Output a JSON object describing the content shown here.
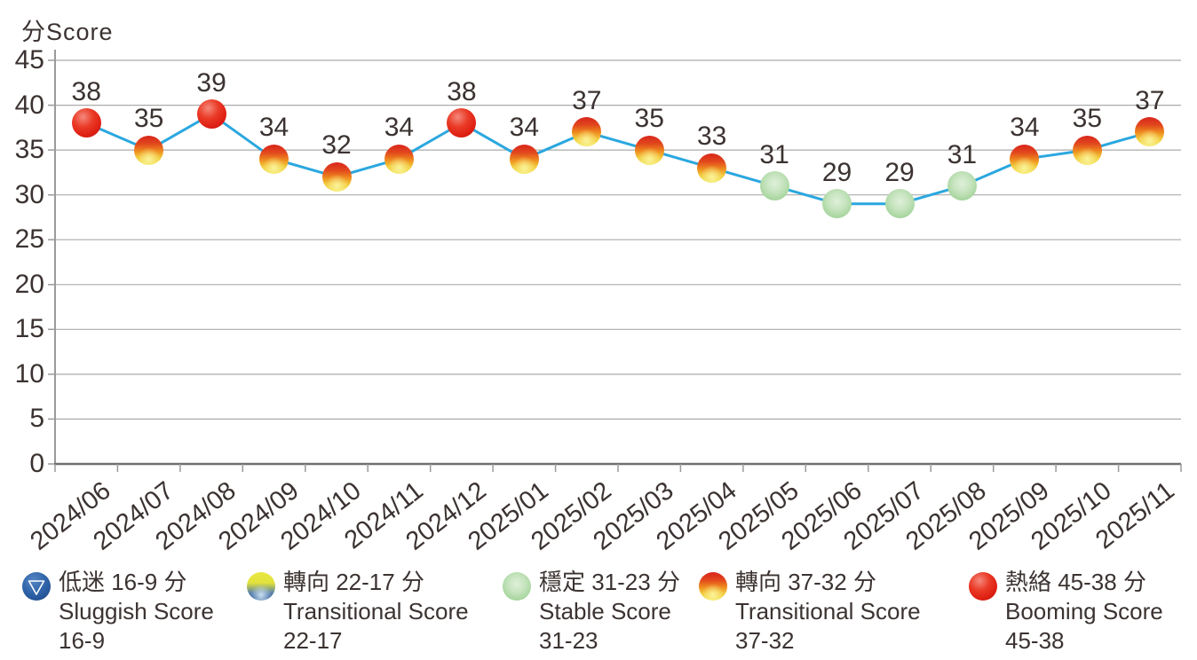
{
  "chart_data": {
    "type": "line",
    "title": "分Score",
    "x": [
      "2024/06",
      "2024/07",
      "2024/08",
      "2024/09",
      "2024/10",
      "2024/11",
      "2024/12",
      "2025/01",
      "2025/02",
      "2025/03",
      "2025/04",
      "2025/05",
      "2025/06",
      "2025/07",
      "2025/08",
      "2025/09",
      "2025/10",
      "2025/11"
    ],
    "values": [
      38,
      35,
      39,
      34,
      32,
      34,
      38,
      34,
      37,
      35,
      33,
      31,
      29,
      29,
      31,
      34,
      35,
      37
    ],
    "point_categories": [
      "booming",
      "transitional-high",
      "booming",
      "transitional-high",
      "transitional-high",
      "transitional-high",
      "booming",
      "transitional-high",
      "transitional-high",
      "transitional-high",
      "transitional-high",
      "stable",
      "stable",
      "stable",
      "stable",
      "transitional-high",
      "transitional-high",
      "transitional-high"
    ],
    "xlabel": "",
    "ylabel": "分Score",
    "ylim": [
      0,
      45
    ],
    "yticks": [
      0,
      5,
      10,
      15,
      20,
      25,
      30,
      35,
      40,
      45
    ],
    "grid": true,
    "legend_position": "bottom",
    "line_color": "#2BA7DF",
    "grid_color": "#ABABAB",
    "axis_color": "#6F6F6F",
    "text_color": "#3B3331",
    "category_colors": {
      "booming": "#E32119",
      "transitional_high_top": "#D8251C",
      "transitional_high_bottom": "#F2E456",
      "stable": "#A5D49C",
      "transitional_low_top": "#E9E840",
      "transitional_low_bottom": "#3D6BA4",
      "sluggish": "#2F64A9"
    }
  },
  "legend": {
    "items": [
      {
        "key": "sluggish",
        "icon": "blue-triangle-sphere-icon",
        "line1": "低迷 16-9 分",
        "line2": "Sluggish Score",
        "line3": "16-9"
      },
      {
        "key": "transitional-low",
        "icon": "yellow-blue-sphere-icon",
        "line1": "轉向 22-17 分",
        "line2": "Transitional Score",
        "line3": "22-17"
      },
      {
        "key": "stable",
        "icon": "green-sphere-icon",
        "line1": "穩定 31-23 分",
        "line2": "Stable Score",
        "line3": "31-23"
      },
      {
        "key": "transitional-high",
        "icon": "red-yellow-sphere-icon",
        "line1": "轉向 37-32 分",
        "line2": "Transitional Score",
        "line3": "37-32"
      },
      {
        "key": "booming",
        "icon": "red-sphere-icon",
        "line1": "熱絡 45-38 分",
        "line2": "Booming Score",
        "line3": "45-38"
      }
    ]
  }
}
